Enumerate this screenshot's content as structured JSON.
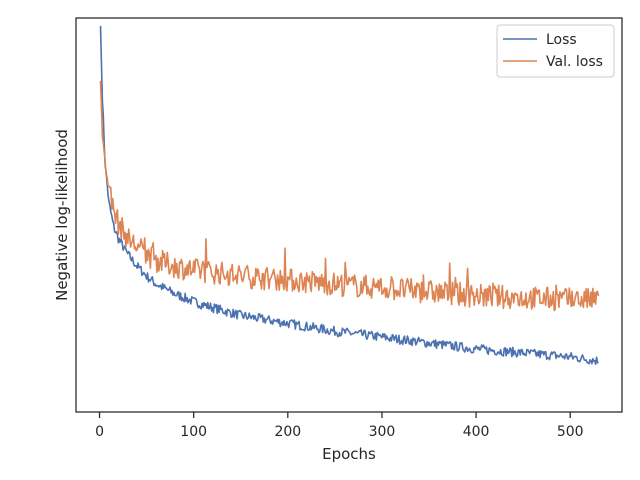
{
  "chart_data": {
    "type": "line",
    "xlabel": "Epochs",
    "ylabel": "Negative log-likelihood",
    "xlim": [
      -25,
      555
    ],
    "ylim": [
      0,
      1
    ],
    "x_ticks": [
      0,
      100,
      200,
      300,
      400,
      500
    ],
    "y_ticks_shown": false,
    "grid": false,
    "legend_position": "upper right",
    "series": [
      {
        "name": "Loss",
        "color": "#4c72b0",
        "anchors": [
          [
            1,
            0.98
          ],
          [
            3,
            0.8
          ],
          [
            6,
            0.63
          ],
          [
            10,
            0.53
          ],
          [
            15,
            0.47
          ],
          [
            20,
            0.44
          ],
          [
            30,
            0.4
          ],
          [
            40,
            0.37
          ],
          [
            50,
            0.345
          ],
          [
            60,
            0.325
          ],
          [
            80,
            0.3
          ],
          [
            100,
            0.28
          ],
          [
            120,
            0.265
          ],
          [
            150,
            0.245
          ],
          [
            200,
            0.225
          ],
          [
            250,
            0.205
          ],
          [
            300,
            0.19
          ],
          [
            350,
            0.175
          ],
          [
            400,
            0.16
          ],
          [
            450,
            0.15
          ],
          [
            500,
            0.14
          ],
          [
            530,
            0.13
          ]
        ]
      },
      {
        "name": "Val. loss",
        "color": "#dd8452",
        "anchors": [
          [
            1,
            0.84
          ],
          [
            3,
            0.72
          ],
          [
            6,
            0.62
          ],
          [
            10,
            0.55
          ],
          [
            15,
            0.51
          ],
          [
            20,
            0.48
          ],
          [
            30,
            0.44
          ],
          [
            40,
            0.42
          ],
          [
            50,
            0.4
          ],
          [
            60,
            0.385
          ],
          [
            80,
            0.37
          ],
          [
            100,
            0.36
          ],
          [
            120,
            0.355
          ],
          [
            150,
            0.345
          ],
          [
            200,
            0.335
          ],
          [
            250,
            0.325
          ],
          [
            300,
            0.315
          ],
          [
            350,
            0.305
          ],
          [
            400,
            0.295
          ],
          [
            450,
            0.29
          ],
          [
            500,
            0.285
          ],
          [
            530,
            0.285
          ]
        ]
      }
    ]
  }
}
